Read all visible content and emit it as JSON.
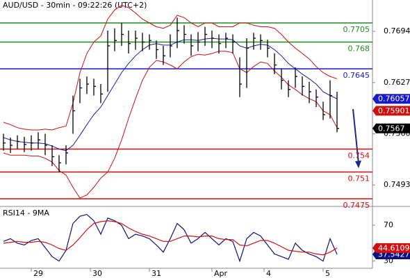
{
  "chart_data": [
    {
      "type": "ohlc",
      "title": "AUD/USD - 30min - 09:22:26 (UTC+2)",
      "x": [
        0,
        1,
        2,
        3,
        4,
        5,
        6,
        7,
        8,
        9,
        10,
        11,
        12,
        13,
        14,
        15,
        16,
        17,
        18,
        19,
        20,
        21,
        22,
        23,
        24,
        25,
        26,
        27,
        28,
        29,
        30,
        31,
        32,
        33,
        34,
        35,
        36,
        37,
        38,
        39,
        40,
        41,
        42,
        43,
        44,
        45,
        46,
        47,
        48
      ],
      "high": [
        0.756,
        0.7555,
        0.7558,
        0.7556,
        0.7558,
        0.7562,
        0.756,
        0.7545,
        0.7532,
        0.7545,
        0.761,
        0.7632,
        0.7635,
        0.7632,
        0.7625,
        0.7695,
        0.7698,
        0.7705,
        0.7695,
        0.7695,
        0.7692,
        0.769,
        0.7682,
        0.7675,
        0.769,
        0.7712,
        0.7702,
        0.769,
        0.7693,
        0.77,
        0.7695,
        0.769,
        0.7692,
        0.769,
        0.766,
        0.7685,
        0.7692,
        0.769,
        0.7683,
        0.7665,
        0.7645,
        0.763,
        0.7647,
        0.7635,
        0.7628,
        0.7618,
        0.7602,
        0.763,
        0.7615
      ],
      "low": [
        0.7538,
        0.7535,
        0.754,
        0.7536,
        0.7538,
        0.754,
        0.7532,
        0.7518,
        0.751,
        0.752,
        0.756,
        0.76,
        0.7612,
        0.761,
        0.76,
        0.7615,
        0.7668,
        0.7675,
        0.7665,
        0.767,
        0.7668,
        0.767,
        0.7658,
        0.765,
        0.766,
        0.7672,
        0.7678,
        0.7662,
        0.7668,
        0.7675,
        0.7672,
        0.7665,
        0.7672,
        0.7665,
        0.7608,
        0.762,
        0.767,
        0.767,
        0.766,
        0.7638,
        0.7618,
        0.7608,
        0.762,
        0.761,
        0.76,
        0.7595,
        0.7578,
        0.758,
        0.7562
      ],
      "close": [
        0.7548,
        0.7545,
        0.755,
        0.7546,
        0.7548,
        0.7552,
        0.7545,
        0.753,
        0.7522,
        0.7535,
        0.759,
        0.762,
        0.7625,
        0.7622,
        0.7612,
        0.7675,
        0.7682,
        0.769,
        0.7678,
        0.7685,
        0.768,
        0.7682,
        0.767,
        0.7662,
        0.7675,
        0.7695,
        0.769,
        0.7675,
        0.768,
        0.769,
        0.7685,
        0.7678,
        0.7685,
        0.768,
        0.7625,
        0.7672,
        0.7685,
        0.7682,
        0.7672,
        0.765,
        0.763,
        0.7618,
        0.7635,
        0.7622,
        0.7615,
        0.7608,
        0.7585,
        0.761,
        0.7567
      ],
      "color": "#000000",
      "series": [
        {
          "color": "#1c1ca8",
          "values": [
            0.7555,
            0.7552,
            0.755,
            0.7549,
            0.7548,
            0.7548,
            0.7547,
            0.7544,
            0.754,
            0.7538,
            0.7545,
            0.7558,
            0.7572,
            0.7585,
            0.7595,
            0.761,
            0.7625,
            0.764,
            0.7652,
            0.7662,
            0.767,
            0.7676,
            0.7678,
            0.7676,
            0.7676,
            0.768,
            0.7683,
            0.7683,
            0.7682,
            0.7684,
            0.7685,
            0.7684,
            0.7684,
            0.7683,
            0.7675,
            0.7672,
            0.7675,
            0.7677,
            0.7676,
            0.767,
            0.7662,
            0.7652,
            0.7645,
            0.7638,
            0.7632,
            0.7625,
            0.7615,
            0.761,
            0.76057
          ]
        },
        {
          "color": "#cc1010",
          "values": [
            0.7575,
            0.7572,
            0.7568,
            0.7566,
            0.7565,
            0.7565,
            0.7566,
            0.7565,
            0.7568,
            0.757,
            0.76,
            0.764,
            0.7665,
            0.768,
            0.7688,
            0.771,
            0.7722,
            0.7728,
            0.7725,
            0.7718,
            0.771,
            0.7705,
            0.77,
            0.7698,
            0.7702,
            0.7715,
            0.7712,
            0.7705,
            0.77,
            0.7705,
            0.7705,
            0.77,
            0.77,
            0.77,
            0.7705,
            0.7705,
            0.7702,
            0.77,
            0.77,
            0.7698,
            0.769,
            0.768,
            0.7672,
            0.7665,
            0.7658,
            0.7648,
            0.764,
            0.7635,
            0.7632
          ]
        },
        {
          "color": "#cc1010",
          "values": [
            0.7535,
            0.7532,
            0.7532,
            0.7532,
            0.7531,
            0.7531,
            0.7528,
            0.7523,
            0.7512,
            0.7506,
            0.749,
            0.7476,
            0.748,
            0.749,
            0.7502,
            0.751,
            0.7528,
            0.7552,
            0.758,
            0.7606,
            0.763,
            0.7647,
            0.7656,
            0.7654,
            0.765,
            0.7645,
            0.7654,
            0.7661,
            0.7664,
            0.7663,
            0.7665,
            0.7668,
            0.7668,
            0.7666,
            0.7645,
            0.764,
            0.7648,
            0.7654,
            0.7652,
            0.7642,
            0.7634,
            0.7624,
            0.7618,
            0.7611,
            0.7606,
            0.7602,
            0.759,
            0.7585,
            0.7568
          ]
        }
      ],
      "levels": [
        {
          "value": 0.7705,
          "color": "#1e8a1e"
        },
        {
          "value": 0.768,
          "color": "#1e8a1e"
        },
        {
          "value": 0.7645,
          "color": "#1a1acc"
        },
        {
          "value": 0.754,
          "color": "#d01010"
        },
        {
          "value": 0.751,
          "color": "#d01010"
        },
        {
          "value": 0.7475,
          "color": "#d01010"
        }
      ],
      "price_tags": [
        {
          "value": 0.76057,
          "color": "#1a1acc"
        },
        {
          "value": 0.75901,
          "color": "#d01010"
        },
        {
          "value": 0.7567,
          "color": "#000000"
        }
      ],
      "xlim": [
        -0.5,
        53.1
      ],
      "ylim": [
        0.7465,
        0.7735
      ],
      "yticks": [
        0.7694,
        0.7627,
        {
          "value": 0.756,
          "label": "0.7560"
        },
        0.7493
      ]
    },
    {
      "type": "line",
      "title": "RSI14 - 9MA",
      "x": [
        0,
        1,
        2,
        3,
        4,
        5,
        6,
        7,
        8,
        9,
        10,
        11,
        12,
        13,
        14,
        15,
        16,
        17,
        18,
        19,
        20,
        21,
        22,
        23,
        24,
        25,
        26,
        27,
        28,
        29,
        30,
        31,
        32,
        33,
        34,
        35,
        36,
        37,
        38,
        39,
        40,
        41,
        42,
        43,
        44,
        45,
        46,
        47,
        48
      ],
      "series": [
        {
          "color": "#101080",
          "values": [
            52,
            55,
            50,
            48,
            53,
            55,
            45,
            35,
            30,
            42,
            72,
            80,
            82,
            75,
            60,
            78,
            75,
            70,
            55,
            60,
            58,
            55,
            48,
            40,
            55,
            72,
            65,
            50,
            55,
            62,
            55,
            48,
            55,
            52,
            30,
            55,
            62,
            58,
            48,
            38,
            35,
            32,
            50,
            42,
            38,
            35,
            30,
            55,
            37.5427
          ]
        },
        {
          "color": "#d01010",
          "values": [
            50,
            51,
            52,
            51,
            51,
            52,
            51,
            48,
            44,
            42,
            48,
            56,
            65,
            72,
            74,
            75,
            74,
            72,
            67,
            63,
            60,
            58,
            55,
            52,
            52,
            55,
            58,
            58,
            57,
            58,
            58,
            55,
            54,
            54,
            48,
            47,
            50,
            53,
            53,
            50,
            46,
            42,
            41,
            40,
            40,
            38,
            37,
            40,
            44.6109
          ]
        }
      ],
      "xlim": [
        -0.5,
        53.1
      ],
      "ylim": [
        22,
        91
      ],
      "yticks": [
        70,
        30
      ],
      "xticks": [
        {
          "value": 4,
          "label": "29"
        },
        {
          "value": 12.5,
          "label": "30"
        },
        {
          "value": 21,
          "label": "31"
        },
        {
          "value": 30,
          "label": "Apr"
        },
        {
          "value": 37.5,
          "label": "4"
        },
        {
          "value": 46,
          "label": "5"
        }
      ]
    }
  ]
}
